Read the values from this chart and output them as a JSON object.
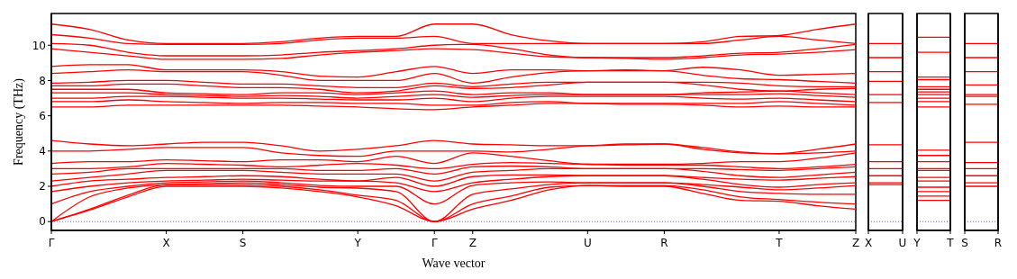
{
  "chart_data": [
    {
      "type": "line",
      "xlabel": "Wave vector",
      "ylabel": "Frequency (THz)",
      "categories": [
        "Γ",
        null,
        null,
        "X",
        null,
        "S",
        null,
        null,
        "Y",
        null,
        "Γ",
        "Z",
        null,
        null,
        "U",
        null,
        "R",
        null,
        null,
        "T",
        null,
        "Z"
      ],
      "ylim": [
        -0.5,
        11.8
      ],
      "yticks": [
        0,
        2,
        4,
        6,
        8,
        10
      ],
      "ref_lines": [
        {
          "axis": "y",
          "value": 0,
          "label": null,
          "color": "#6b6bff",
          "line_style": "dotted"
        }
      ],
      "series": [
        {
          "color": "#ff0000",
          "values": [
            0,
            0.65,
            1.4,
            2.0,
            2.0,
            2.0,
            1.9,
            1.7,
            1.4,
            0.9,
            0,
            0.7,
            1.2,
            1.8,
            2.05,
            2.0,
            2.0,
            1.6,
            1.2,
            1.15,
            0.9,
            0.7
          ]
        },
        {
          "color": "#ff0000",
          "values": [
            0,
            0.7,
            1.5,
            2.1,
            2.1,
            2.1,
            2.0,
            1.8,
            1.5,
            1.2,
            0,
            1.0,
            1.45,
            1.95,
            2.05,
            2.05,
            2.05,
            1.8,
            1.4,
            1.25,
            1.1,
            1.0
          ]
        },
        {
          "color": "#ff0000",
          "values": [
            0,
            1.4,
            1.9,
            2.1,
            2.15,
            2.2,
            2.1,
            1.95,
            1.9,
            1.7,
            0,
            1.55,
            1.85,
            2.1,
            2.2,
            2.2,
            2.2,
            2.0,
            1.7,
            1.6,
            1.55,
            1.55
          ]
        },
        {
          "color": "#ff0000",
          "values": [
            1.0,
            1.7,
            2.0,
            2.2,
            2.25,
            2.3,
            2.2,
            2.05,
            2.0,
            2.0,
            1.0,
            2.05,
            2.2,
            2.25,
            2.2,
            2.2,
            2.2,
            2.1,
            1.95,
            1.8,
            1.9,
            2.05
          ]
        },
        {
          "color": "#ff0000",
          "values": [
            1.7,
            2.0,
            2.2,
            2.3,
            2.35,
            2.4,
            2.35,
            2.3,
            2.3,
            2.2,
            1.7,
            2.2,
            2.4,
            2.55,
            2.6,
            2.6,
            2.6,
            2.4,
            2.1,
            1.95,
            2.1,
            2.2
          ]
        },
        {
          "color": "#ff0000",
          "values": [
            2.0,
            2.3,
            2.4,
            2.5,
            2.55,
            2.6,
            2.55,
            2.4,
            2.3,
            2.5,
            2.0,
            2.55,
            2.65,
            2.65,
            2.6,
            2.6,
            2.6,
            2.5,
            2.4,
            2.35,
            2.45,
            2.55
          ]
        },
        {
          "color": "#ff0000",
          "values": [
            2.3,
            2.5,
            2.7,
            2.9,
            2.9,
            2.9,
            2.8,
            2.7,
            2.7,
            2.7,
            2.3,
            2.8,
            2.9,
            3.0,
            3.0,
            3.0,
            3.0,
            2.85,
            2.6,
            2.5,
            2.65,
            2.8
          ]
        },
        {
          "color": "#ff0000",
          "values": [
            2.7,
            2.8,
            3.0,
            3.0,
            3.0,
            3.0,
            3.0,
            2.9,
            2.9,
            3.0,
            2.7,
            3.1,
            3.15,
            3.1,
            3.0,
            3.0,
            3.0,
            3.0,
            2.95,
            2.9,
            3.0,
            3.1
          ]
        },
        {
          "color": "#ff0000",
          "values": [
            3.0,
            3.0,
            3.1,
            3.3,
            3.25,
            3.2,
            3.1,
            3.2,
            3.3,
            3.2,
            3.0,
            3.25,
            3.35,
            3.3,
            3.25,
            3.2,
            3.2,
            3.2,
            3.1,
            3.0,
            3.1,
            3.25
          ]
        },
        {
          "color": "#ff0000",
          "values": [
            3.3,
            3.4,
            3.4,
            3.5,
            3.45,
            3.4,
            3.5,
            3.5,
            3.4,
            3.7,
            3.3,
            3.9,
            3.7,
            3.45,
            3.25,
            3.25,
            3.25,
            3.3,
            3.4,
            3.4,
            3.6,
            3.9
          ]
        },
        {
          "color": "#ff0000",
          "values": [
            4.0,
            4.0,
            4.1,
            4.2,
            4.2,
            4.2,
            3.9,
            3.75,
            3.7,
            4.0,
            4.0,
            4.0,
            3.95,
            4.1,
            4.3,
            4.35,
            4.4,
            4.1,
            3.9,
            3.85,
            3.9,
            4.0
          ]
        },
        {
          "color": "#ff0000",
          "values": [
            4.6,
            4.4,
            4.3,
            4.4,
            4.5,
            4.5,
            4.3,
            4.0,
            4.1,
            4.3,
            4.6,
            4.4,
            4.35,
            4.3,
            4.3,
            4.4,
            4.4,
            4.2,
            3.95,
            3.85,
            4.1,
            4.4
          ]
        },
        {
          "color": "#ff0000",
          "values": [
            6.5,
            6.5,
            6.6,
            6.6,
            6.6,
            6.6,
            6.6,
            6.55,
            6.5,
            6.4,
            6.35,
            6.5,
            6.6,
            6.7,
            6.7,
            6.65,
            6.65,
            6.6,
            6.5,
            6.55,
            6.5,
            6.5
          ]
        },
        {
          "color": "#ff0000",
          "values": [
            6.8,
            6.8,
            6.9,
            6.8,
            6.75,
            6.7,
            6.75,
            6.75,
            6.7,
            6.7,
            6.6,
            6.6,
            6.75,
            6.8,
            6.7,
            6.7,
            6.7,
            6.7,
            6.7,
            6.8,
            6.7,
            6.6
          ]
        },
        {
          "color": "#ff0000",
          "values": [
            7.0,
            7.0,
            7.1,
            7.1,
            7.05,
            7.0,
            7.0,
            6.95,
            6.9,
            6.9,
            7.0,
            6.8,
            7.0,
            7.1,
            7.1,
            7.1,
            7.1,
            7.0,
            6.95,
            7.0,
            6.9,
            6.8
          ]
        },
        {
          "color": "#ff0000",
          "values": [
            7.3,
            7.3,
            7.3,
            7.2,
            7.15,
            7.1,
            7.15,
            7.1,
            7.0,
            7.1,
            7.2,
            7.05,
            7.15,
            7.2,
            7.2,
            7.2,
            7.2,
            7.2,
            7.2,
            7.25,
            7.15,
            7.05
          ]
        },
        {
          "color": "#ff0000",
          "values": [
            7.5,
            7.5,
            7.5,
            7.3,
            7.25,
            7.2,
            7.3,
            7.3,
            7.2,
            7.3,
            7.4,
            7.2,
            7.3,
            7.3,
            7.2,
            7.2,
            7.2,
            7.3,
            7.35,
            7.4,
            7.3,
            7.2
          ]
        },
        {
          "color": "#ff0000",
          "values": [
            7.7,
            7.7,
            7.8,
            7.8,
            7.7,
            7.6,
            7.6,
            7.5,
            7.3,
            7.4,
            7.7,
            7.55,
            7.6,
            7.75,
            7.9,
            7.9,
            7.9,
            7.75,
            7.5,
            7.4,
            7.5,
            7.55
          ]
        },
        {
          "color": "#ff0000",
          "values": [
            7.85,
            7.9,
            8.0,
            8.0,
            7.9,
            7.8,
            7.8,
            7.7,
            7.6,
            7.6,
            7.85,
            7.65,
            7.8,
            7.9,
            7.9,
            7.9,
            7.9,
            7.9,
            7.85,
            7.7,
            7.65,
            7.65
          ]
        },
        {
          "color": "#ff0000",
          "values": [
            8.4,
            8.5,
            8.6,
            8.5,
            8.5,
            8.5,
            8.3,
            8.0,
            8.0,
            8.0,
            8.4,
            7.85,
            8.2,
            8.45,
            8.55,
            8.55,
            8.55,
            8.3,
            8.1,
            8.05,
            7.95,
            7.85
          ]
        },
        {
          "color": "#ff0000",
          "values": [
            8.8,
            8.9,
            8.9,
            8.6,
            8.6,
            8.6,
            8.5,
            8.25,
            8.2,
            8.5,
            8.8,
            8.4,
            8.6,
            8.6,
            8.55,
            8.6,
            8.55,
            8.75,
            8.6,
            8.3,
            8.35,
            8.4
          ]
        },
        {
          "color": "#ff0000",
          "values": [
            9.8,
            9.6,
            9.4,
            9.2,
            9.2,
            9.2,
            9.25,
            9.45,
            9.6,
            9.7,
            9.8,
            9.75,
            9.55,
            9.35,
            9.3,
            9.25,
            9.2,
            9.3,
            9.45,
            9.5,
            9.6,
            9.75
          ]
        },
        {
          "color": "#ff0000",
          "values": [
            10.1,
            10.0,
            9.6,
            9.4,
            9.4,
            9.4,
            9.45,
            9.6,
            9.7,
            9.8,
            10.0,
            10.05,
            9.8,
            9.45,
            9.3,
            9.3,
            9.3,
            9.4,
            9.55,
            9.6,
            9.8,
            10.05
          ]
        },
        {
          "color": "#ff0000",
          "values": [
            10.6,
            10.4,
            10.1,
            10.05,
            10.05,
            10.05,
            10.1,
            10.3,
            10.4,
            10.4,
            10.5,
            10.1,
            10.1,
            10.1,
            10.1,
            10.1,
            10.1,
            10.1,
            10.3,
            10.5,
            10.3,
            10.1
          ]
        },
        {
          "color": "#ff0000",
          "values": [
            11.2,
            10.9,
            10.3,
            10.1,
            10.1,
            10.1,
            10.2,
            10.4,
            10.5,
            10.5,
            11.2,
            11.2,
            10.6,
            10.25,
            10.1,
            10.1,
            10.1,
            10.2,
            10.5,
            10.55,
            10.9,
            11.2
          ]
        }
      ]
    },
    {
      "type": "line",
      "categories": [
        "X",
        "U"
      ],
      "ylim": [
        -0.5,
        11.8
      ],
      "tick_labels": "x",
      "ref_lines": [
        {
          "axis": "y",
          "value": 0,
          "label": null,
          "color": "#6b6bff",
          "line_style": "dotted"
        }
      ],
      "series": [
        {
          "color": "#ff0000",
          "values": [
            2.1,
            2.1
          ]
        },
        {
          "color": "#ff0000",
          "values": [
            2.2,
            2.2
          ]
        },
        {
          "color": "#ff0000",
          "values": [
            2.6,
            2.6
          ]
        },
        {
          "color": "#ff0000",
          "values": [
            3.0,
            3.0
          ]
        },
        {
          "color": "#ff0000",
          "values": [
            3.4,
            3.4
          ]
        },
        {
          "color": "#ff0000",
          "values": [
            4.35,
            4.35
          ]
        },
        {
          "color": "#ff0000",
          "values": [
            6.75,
            6.75
          ]
        },
        {
          "color": "#ff0000",
          "values": [
            7.2,
            7.2
          ]
        },
        {
          "color": "#ff0000",
          "values": [
            7.95,
            7.95
          ]
        },
        {
          "color": "#ff0000",
          "values": [
            8.5,
            8.5
          ]
        },
        {
          "color": "#ff0000",
          "values": [
            9.3,
            9.3
          ]
        },
        {
          "color": "#ff0000",
          "values": [
            10.1,
            10.1
          ]
        }
      ]
    },
    {
      "type": "line",
      "categories": [
        "Y",
        "T"
      ],
      "ylim": [
        -0.5,
        11.8
      ],
      "tick_labels": "x",
      "ref_lines": [
        {
          "axis": "y",
          "value": 0,
          "label": null,
          "color": "#6b6bff",
          "line_style": "dotted"
        }
      ],
      "series": [
        {
          "color": "#ff0000",
          "values": [
            1.2,
            1.2
          ]
        },
        {
          "color": "#ff0000",
          "values": [
            1.45,
            1.45
          ]
        },
        {
          "color": "#ff0000",
          "values": [
            1.7,
            1.7
          ]
        },
        {
          "color": "#ff0000",
          "values": [
            1.95,
            1.95
          ]
        },
        {
          "color": "#ff0000",
          "values": [
            2.3,
            2.3
          ]
        },
        {
          "color": "#ff0000",
          "values": [
            2.5,
            2.5
          ]
        },
        {
          "color": "#ff0000",
          "values": [
            2.9,
            2.9
          ]
        },
        {
          "color": "#ff0000",
          "values": [
            3.0,
            3.0
          ]
        },
        {
          "color": "#ff0000",
          "values": [
            3.4,
            3.4
          ]
        },
        {
          "color": "#ff0000",
          "values": [
            3.75,
            3.75
          ]
        },
        {
          "color": "#ff0000",
          "values": [
            4.05,
            4.05
          ]
        },
        {
          "color": "#ff0000",
          "values": [
            6.5,
            6.5
          ]
        },
        {
          "color": "#ff0000",
          "values": [
            6.8,
            6.8
          ]
        },
        {
          "color": "#ff0000",
          "values": [
            7.0,
            7.0
          ]
        },
        {
          "color": "#ff0000",
          "values": [
            7.2,
            7.2
          ]
        },
        {
          "color": "#ff0000",
          "values": [
            7.35,
            7.35
          ]
        },
        {
          "color": "#ff0000",
          "values": [
            7.5,
            7.5
          ]
        },
        {
          "color": "#ff0000",
          "values": [
            7.65,
            7.65
          ]
        },
        {
          "color": "#ff0000",
          "values": [
            8.05,
            8.05
          ]
        },
        {
          "color": "#ff0000",
          "values": [
            8.2,
            8.2
          ]
        },
        {
          "color": "#ff0000",
          "values": [
            9.6,
            9.6
          ]
        },
        {
          "color": "#ff0000",
          "values": [
            10.45,
            10.45
          ]
        }
      ]
    },
    {
      "type": "line",
      "categories": [
        "S",
        "R"
      ],
      "ylim": [
        -0.5,
        11.8
      ],
      "tick_labels": "x",
      "ref_lines": [
        {
          "axis": "y",
          "value": 0,
          "label": null,
          "color": "#6b6bff",
          "line_style": "dotted"
        }
      ],
      "series": [
        {
          "color": "#ff0000",
          "values": [
            2.0,
            2.0
          ]
        },
        {
          "color": "#ff0000",
          "values": [
            2.2,
            2.2
          ]
        },
        {
          "color": "#ff0000",
          "values": [
            2.6,
            2.6
          ]
        },
        {
          "color": "#ff0000",
          "values": [
            3.0,
            3.0
          ]
        },
        {
          "color": "#ff0000",
          "values": [
            3.35,
            3.35
          ]
        },
        {
          "color": "#ff0000",
          "values": [
            4.5,
            4.5
          ]
        },
        {
          "color": "#ff0000",
          "values": [
            6.65,
            6.65
          ]
        },
        {
          "color": "#ff0000",
          "values": [
            7.1,
            7.1
          ]
        },
        {
          "color": "#ff0000",
          "values": [
            7.2,
            7.2
          ]
        },
        {
          "color": "#ff0000",
          "values": [
            7.75,
            7.75
          ]
        },
        {
          "color": "#ff0000",
          "values": [
            8.5,
            8.5
          ]
        },
        {
          "color": "#ff0000",
          "values": [
            9.3,
            9.3
          ]
        },
        {
          "color": "#ff0000",
          "values": [
            10.1,
            10.1
          ]
        }
      ]
    }
  ]
}
